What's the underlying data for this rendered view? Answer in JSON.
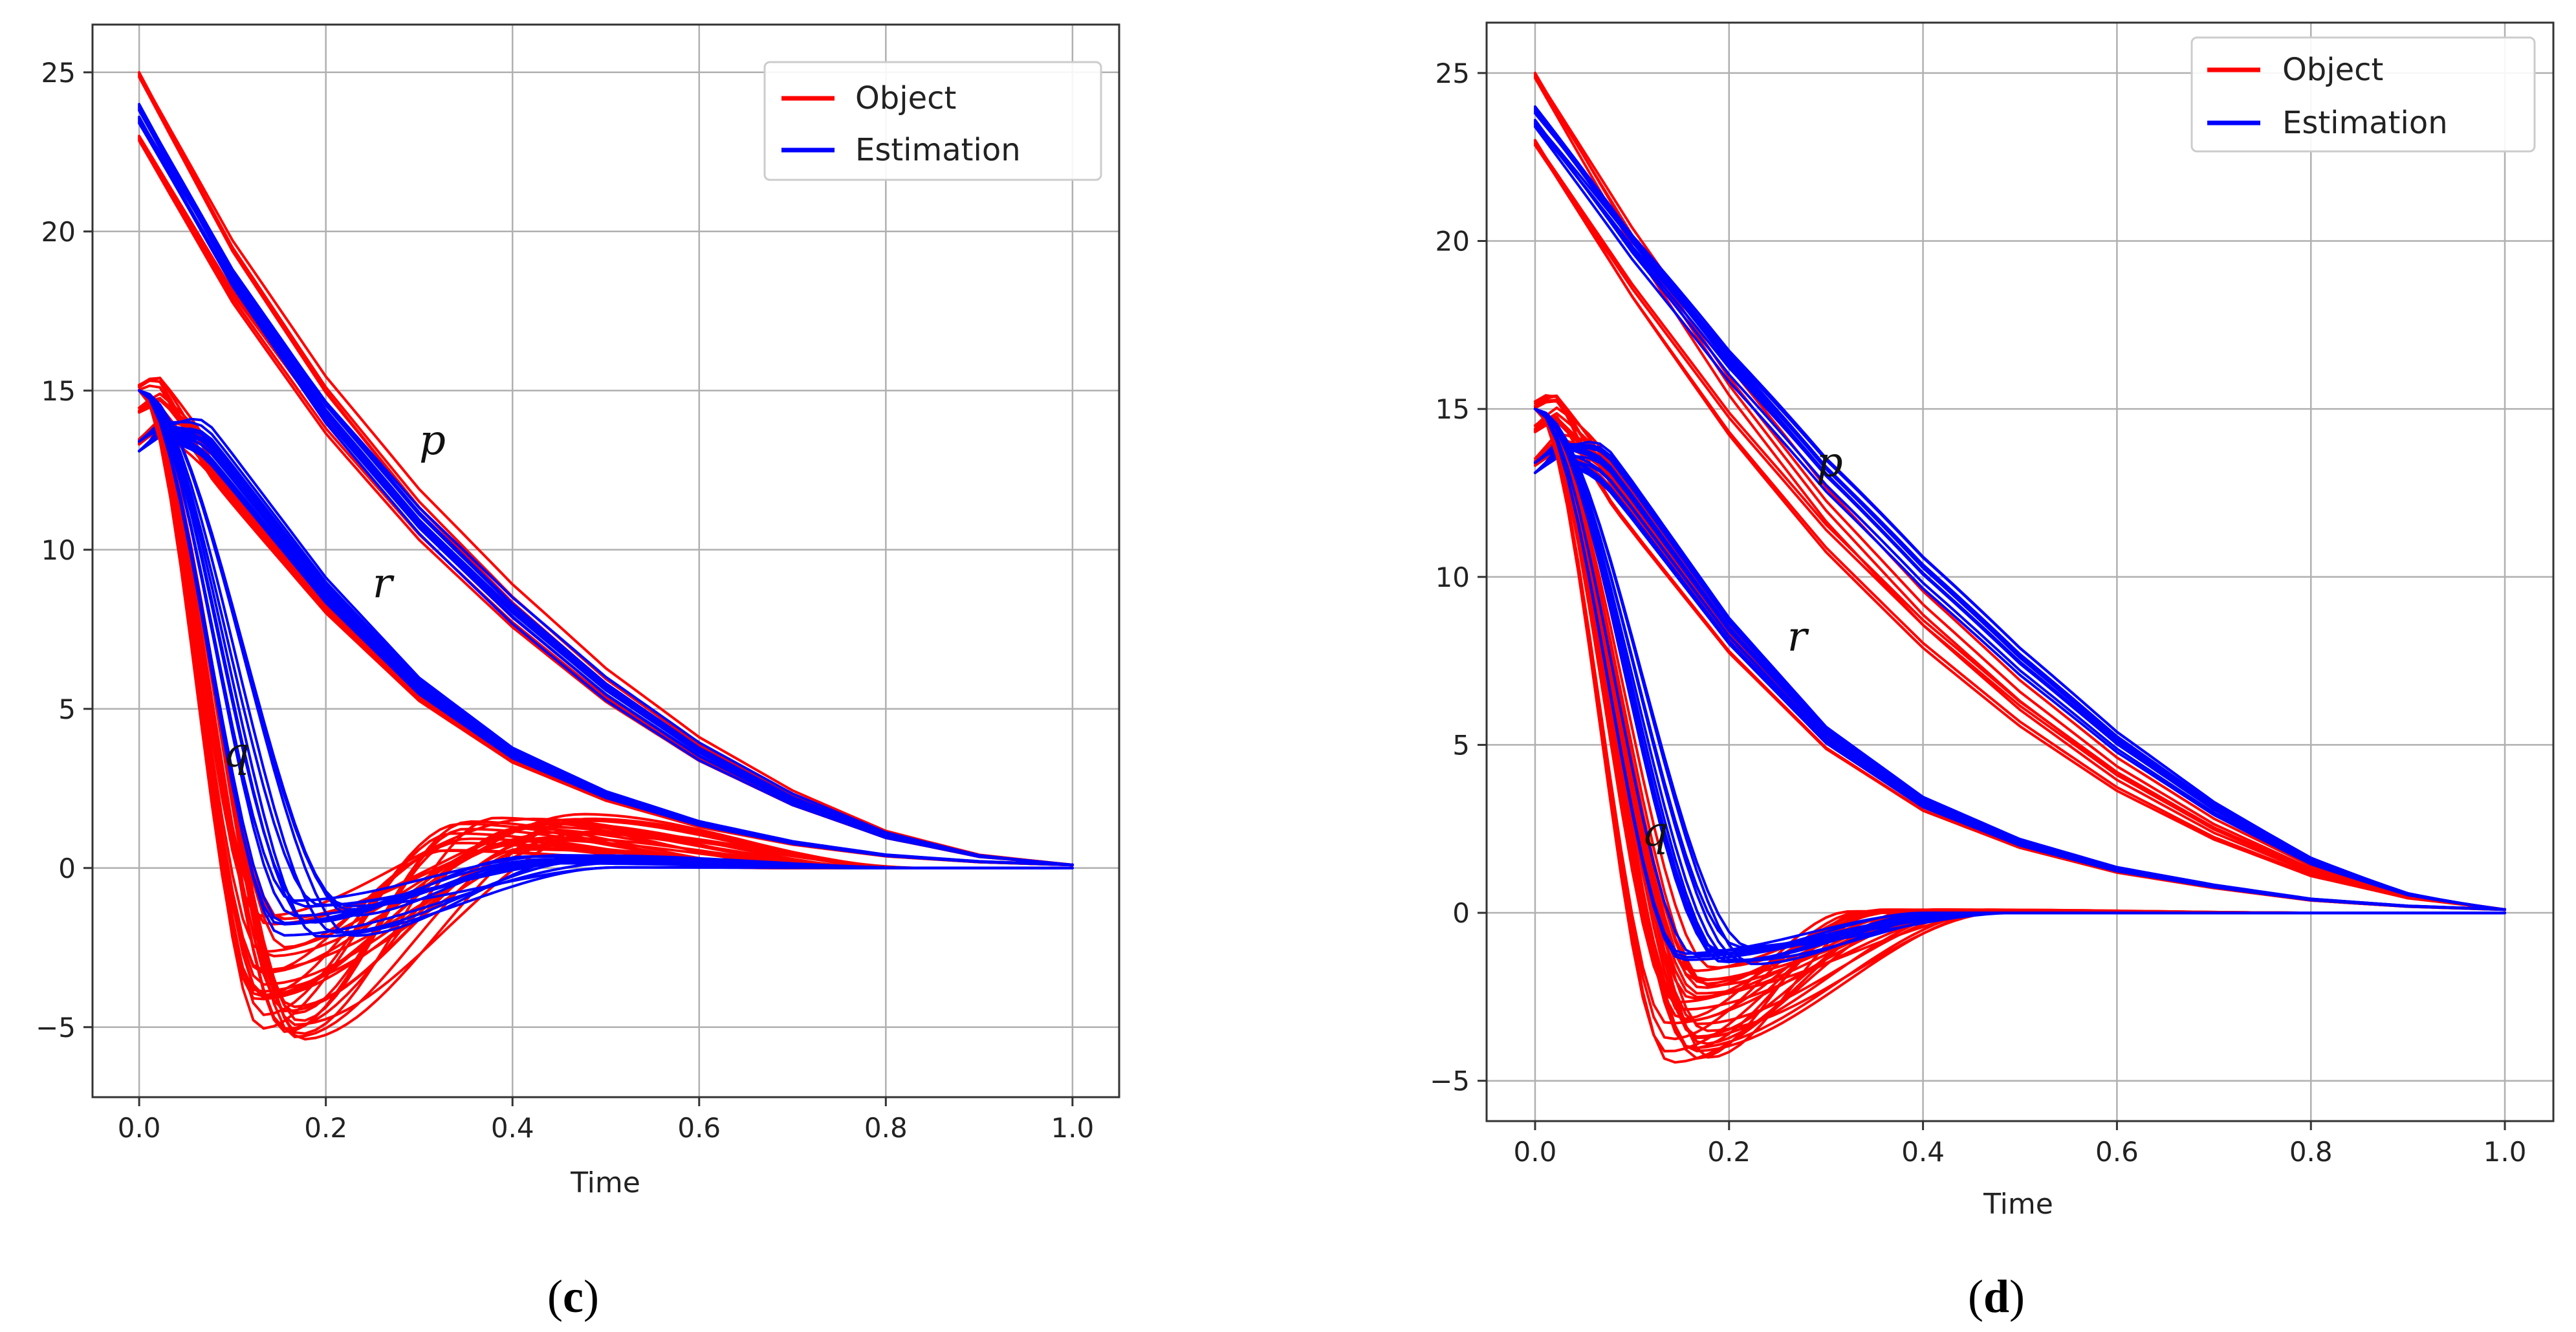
{
  "chart_data": [
    {
      "type": "line",
      "panel": "c",
      "panel_label": {
        "open": "(",
        "letter": "c",
        "close": ")"
      },
      "xlabel": "Time",
      "ylabel": "",
      "xlim": [
        -0.05,
        1.05
      ],
      "ylim": [
        -7.2,
        26.5
      ],
      "x_ticks": [
        0.0,
        0.2,
        0.4,
        0.6,
        0.8,
        1.0
      ],
      "x_tick_labels": [
        "0.0",
        "0.2",
        "0.4",
        "0.6",
        "0.8",
        "1.0"
      ],
      "y_ticks": [
        -5,
        0,
        5,
        10,
        15,
        20,
        25
      ],
      "y_tick_labels": [
        "−5",
        "0",
        "5",
        "10",
        "15",
        "20",
        "25"
      ],
      "grid": true,
      "legend": {
        "position": "top-right",
        "entries": [
          {
            "name": "Object",
            "color": "#ff0000"
          },
          {
            "name": "Estimation",
            "color": "#0000ff"
          }
        ]
      },
      "annotations": [
        {
          "text": "p",
          "x": 0.3,
          "y": 13.0
        },
        {
          "text": "r",
          "x": 0.25,
          "y": 8.5
        },
        {
          "text": "q",
          "x": 0.09,
          "y": 3.2
        }
      ],
      "groups": [
        {
          "variable": "p",
          "object_color": "#ff0000",
          "estimation_color": "#0000ff",
          "object_starts": [
            25.0,
            23.0
          ],
          "estimation_starts": [
            24.0,
            23.6
          ],
          "end_value": 0.1,
          "representative_object_curve": {
            "x": [
              0.0,
              0.1,
              0.2,
              0.3,
              0.4,
              0.5,
              0.6,
              0.7,
              0.8,
              0.9,
              1.0
            ],
            "y": [
              25.0,
              19.6,
              15.2,
              11.6,
              8.6,
              6.0,
              3.9,
              2.3,
              1.1,
              0.4,
              0.1
            ]
          }
        },
        {
          "variable": "r",
          "object_color": "#ff0000",
          "estimation_color": "#0000ff",
          "object_starts": [
            15.0,
            14.3,
            13.3
          ],
          "estimation_starts": [
            13.4,
            13.1
          ],
          "object_peak": 15.3,
          "end_value": 0.1,
          "representative_object_curve": {
            "x": [
              0.0,
              0.02,
              0.1,
              0.2,
              0.3,
              0.4,
              0.5,
              0.6,
              0.7,
              0.8,
              0.9,
              1.0
            ],
            "y": [
              15.0,
              15.3,
              12.4,
              8.7,
              5.7,
              3.6,
              2.3,
              1.4,
              0.8,
              0.4,
              0.2,
              0.1
            ]
          }
        },
        {
          "variable": "q",
          "object_color": "#ff0000",
          "estimation_color": "#0000ff",
          "start": 15.0,
          "object_min_range": [
            -5.5,
            -1.5
          ],
          "object_min_time": 0.15,
          "object_overshoot_max": 1.7,
          "estimation_min_range": [
            -2.3,
            -1.0
          ],
          "end_value": 0.0
        }
      ]
    },
    {
      "type": "line",
      "panel": "d",
      "panel_label": {
        "open": "(",
        "letter": "d",
        "close": ")"
      },
      "xlabel": "Time",
      "ylabel": "",
      "xlim": [
        -0.05,
        1.05
      ],
      "ylim": [
        -6.2,
        26.5
      ],
      "x_ticks": [
        0.0,
        0.2,
        0.4,
        0.6,
        0.8,
        1.0
      ],
      "x_tick_labels": [
        "0.0",
        "0.2",
        "0.4",
        "0.6",
        "0.8",
        "1.0"
      ],
      "y_ticks": [
        -5,
        0,
        5,
        10,
        15,
        20,
        25
      ],
      "y_tick_labels": [
        "−5",
        "0",
        "5",
        "10",
        "15",
        "20",
        "25"
      ],
      "grid": true,
      "legend": {
        "position": "top-right",
        "entries": [
          {
            "name": "Object",
            "color": "#ff0000"
          },
          {
            "name": "Estimation",
            "color": "#0000ff"
          }
        ]
      },
      "annotations": [
        {
          "text": "p",
          "x": 0.29,
          "y": 13.0
        },
        {
          "text": "r",
          "x": 0.26,
          "y": 7.8
        },
        {
          "text": "q",
          "x": 0.11,
          "y": 2.0
        }
      ],
      "groups": [
        {
          "variable": "p",
          "object_color": "#ff0000",
          "estimation_color": "#0000ff",
          "object_starts": [
            25.0,
            23.0
          ],
          "estimation_starts": [
            24.0,
            23.6
          ],
          "end_value": 0.1,
          "representative_object_curve": {
            "x": [
              0.0,
              0.1,
              0.2,
              0.3,
              0.4,
              0.5,
              0.6,
              0.7,
              0.8,
              0.9,
              1.0
            ],
            "y": [
              25.0,
              20.2,
              15.9,
              12.2,
              9.1,
              6.5,
              4.3,
              2.6,
              1.3,
              0.5,
              0.1
            ]
          }
        },
        {
          "variable": "r",
          "object_color": "#ff0000",
          "estimation_color": "#0000ff",
          "object_starts": [
            15.0,
            14.3,
            13.3
          ],
          "estimation_starts": [
            13.4,
            13.1
          ],
          "object_peak": 15.3,
          "end_value": 0.1,
          "representative_object_curve": {
            "x": [
              0.0,
              0.02,
              0.1,
              0.2,
              0.3,
              0.4,
              0.5,
              0.6,
              0.7,
              0.8,
              0.9,
              1.0
            ],
            "y": [
              15.0,
              15.3,
              12.3,
              8.4,
              5.3,
              3.3,
              2.1,
              1.3,
              0.8,
              0.4,
              0.2,
              0.1
            ]
          }
        },
        {
          "variable": "q",
          "object_color": "#ff0000",
          "estimation_color": "#0000ff",
          "start": 15.0,
          "object_min_range": [
            -4.5,
            -1.5
          ],
          "object_min_time": 0.16,
          "object_overshoot_max": 0.1,
          "estimation_min_range": [
            -1.6,
            -1.0
          ],
          "end_value": 0.0
        }
      ]
    }
  ]
}
